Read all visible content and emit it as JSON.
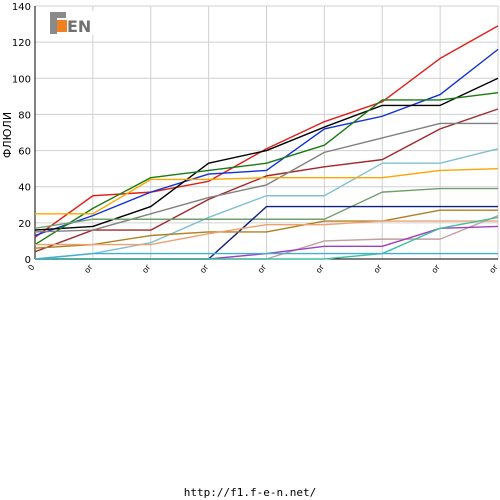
{
  "chart_data": {
    "type": "line",
    "title": "",
    "xlabel": "",
    "ylabel": "ФЛЮЛИ",
    "ylim": [
      0,
      140
    ],
    "yticks": [
      0,
      20,
      40,
      60,
      80,
      100,
      120,
      140
    ],
    "xlim": [
      0,
      8
    ],
    "x_tick_labels": [
      "0",
      "or",
      "or",
      "or",
      "or",
      "or",
      "or",
      "or",
      "or"
    ],
    "grid": true,
    "legend": "none",
    "x": [
      0,
      1,
      2,
      3,
      4,
      5,
      6,
      7,
      8
    ],
    "series": [
      {
        "color": "#e0201a",
        "values": [
          12,
          35,
          37,
          43,
          61,
          76,
          87,
          111,
          129
        ]
      },
      {
        "color": "#1030d8",
        "values": [
          13,
          24,
          37,
          47,
          49,
          72,
          79,
          91,
          116
        ]
      },
      {
        "color": "#000000",
        "values": [
          16,
          18,
          29,
          53,
          60,
          73,
          85,
          85,
          100
        ]
      },
      {
        "color": "#1a7a10",
        "values": [
          8,
          28,
          45,
          49,
          53,
          63,
          88,
          88,
          92
        ]
      },
      {
        "color": "#a02a2a",
        "values": [
          4,
          16,
          16,
          33,
          46,
          51,
          55,
          72,
          83
        ]
      },
      {
        "color": "#808080",
        "values": [
          15,
          16,
          25,
          34,
          41,
          59,
          67,
          75,
          75
        ]
      },
      {
        "color": "#80c0d0",
        "values": [
          0,
          3,
          9,
          23,
          35,
          35,
          53,
          53,
          61
        ]
      },
      {
        "color": "#ffa500",
        "values": [
          25,
          25,
          44,
          44,
          45,
          45,
          45,
          49,
          50
        ]
      },
      {
        "color": "#70a070",
        "values": [
          17,
          22,
          22,
          22,
          22,
          22,
          37,
          39,
          39
        ]
      },
      {
        "color": "#102080",
        "values": [
          0,
          0,
          0,
          0,
          29,
          29,
          29,
          29,
          29
        ]
      },
      {
        "color": "#b08020",
        "values": [
          6,
          8,
          13,
          15,
          15,
          21,
          21,
          27,
          27
        ]
      },
      {
        "color": "#f0a070",
        "values": [
          8,
          8,
          8,
          14,
          19,
          19,
          21,
          21,
          21
        ]
      },
      {
        "color": "#c0a0a0",
        "values": [
          0,
          0,
          0,
          0,
          0,
          10,
          11,
          11,
          24
        ]
      },
      {
        "color": "#a040c0",
        "values": [
          0,
          0,
          0,
          0,
          3,
          7,
          7,
          17,
          18
        ]
      },
      {
        "color": "#40c0a0",
        "values": [
          0,
          0,
          0,
          0,
          0,
          0,
          3,
          17,
          23
        ]
      },
      {
        "color": "#40b0d0",
        "values": [
          0,
          3,
          3,
          3,
          3,
          3,
          3,
          3,
          3
        ]
      }
    ]
  },
  "watermark": {
    "text": "F1EN"
  },
  "footer": {
    "url": "http://f1.f-e-n.net/"
  }
}
